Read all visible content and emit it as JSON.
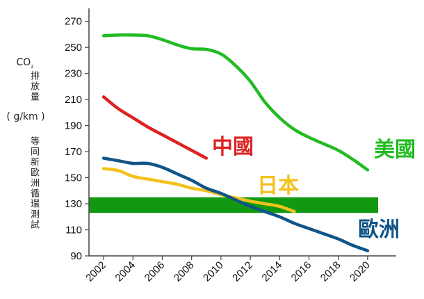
{
  "chart_data": {
    "type": "line",
    "title": "",
    "ylabel": {
      "main": "CO",
      "sub": "2",
      "line1": "排放量",
      "unit": "( g/km )",
      "note": "等同新歐洲循環測試"
    },
    "xlabel": "",
    "xlim": [
      2001,
      2021
    ],
    "ylim": [
      90,
      280
    ],
    "xticks": [
      2002,
      2004,
      2006,
      2008,
      2010,
      2012,
      2014,
      2016,
      2018,
      2020
    ],
    "yticks": [
      90,
      110,
      130,
      150,
      170,
      190,
      210,
      230,
      250,
      270
    ],
    "grid": false,
    "legend": "direct labels on lines",
    "target_band": {
      "from": 123,
      "to": 135,
      "color": "#119911"
    },
    "series": [
      {
        "name": "美國",
        "color": "#22bb22",
        "x": [
          2002,
          2003,
          2004,
          2005,
          2006,
          2007,
          2008,
          2009,
          2010,
          2011,
          2012,
          2013,
          2014,
          2015,
          2016,
          2017,
          2018,
          2019,
          2020
        ],
        "y": [
          259,
          259.5,
          259.5,
          259,
          256,
          252,
          249,
          248.5,
          245,
          236,
          224,
          208,
          196,
          187,
          181,
          176,
          171,
          164,
          156
        ]
      },
      {
        "name": "中國",
        "color": "#dd2222",
        "x": [
          2002,
          2003,
          2004,
          2005,
          2006,
          2007,
          2008,
          2009
        ],
        "y": [
          212,
          203,
          196,
          189,
          183,
          177,
          171,
          165
        ]
      },
      {
        "name": "日本",
        "color": "#f2c21c",
        "x": [
          2002,
          2003,
          2004,
          2005,
          2006,
          2007,
          2008,
          2009,
          2010,
          2011,
          2012,
          2013,
          2014,
          2015
        ],
        "y": [
          157,
          155.5,
          151,
          149,
          147,
          145,
          142,
          140,
          137,
          134.5,
          132,
          130,
          128,
          124
        ]
      },
      {
        "name": "歐洲",
        "color": "#115588",
        "x": [
          2002,
          2003,
          2004,
          2005,
          2006,
          2007,
          2008,
          2009,
          2010,
          2011,
          2012,
          2013,
          2014,
          2015,
          2016,
          2017,
          2018,
          2019,
          2020
        ],
        "y": [
          165,
          163,
          161,
          161,
          158,
          153,
          148,
          142,
          138,
          133,
          128,
          124,
          120,
          115,
          111,
          107,
          103,
          98,
          94
        ]
      }
    ]
  }
}
